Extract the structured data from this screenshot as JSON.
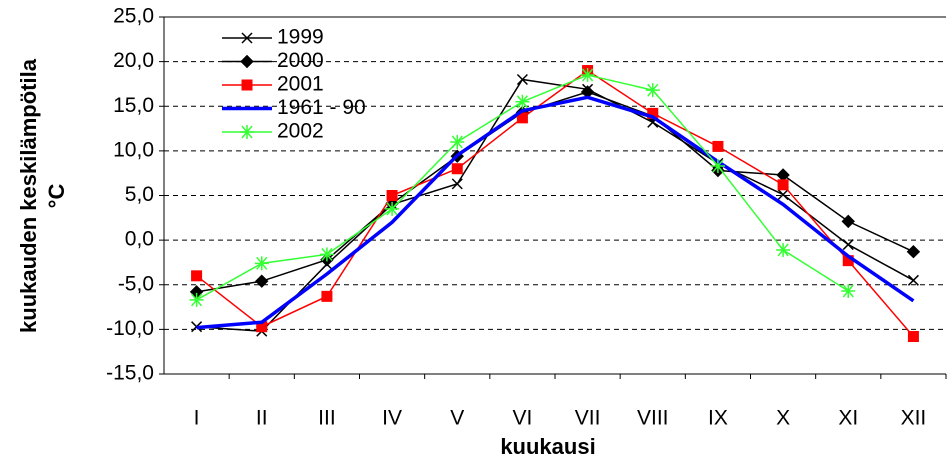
{
  "chart_data": {
    "type": "line",
    "xlabel": "kuukausi",
    "ylabel": [
      "kuukauden keskilämpötila",
      "°C"
    ],
    "categories": [
      "I",
      "II",
      "III",
      "IV",
      "V",
      "VI",
      "VII",
      "VIII",
      "IX",
      "X",
      "XI",
      "XII"
    ],
    "series": [
      {
        "name": "1999",
        "color": "#000000",
        "marker": "x",
        "width": 1.5,
        "values": [
          -9.7,
          -10.2,
          -2.7,
          4.0,
          6.3,
          18.0,
          16.9,
          13.2,
          8.6,
          5.1,
          -0.5,
          -4.5
        ]
      },
      {
        "name": "2000",
        "color": "#000000",
        "marker": "diamond",
        "width": 1.5,
        "values": [
          -5.8,
          -4.6,
          -2.2,
          4.1,
          9.4,
          14.3,
          16.6,
          13.9,
          7.8,
          7.3,
          2.1,
          -1.3
        ]
      },
      {
        "name": "2001",
        "color": "#ff0000",
        "marker": "square",
        "width": 1.5,
        "values": [
          -4.0,
          -9.7,
          -6.3,
          5.0,
          8.0,
          13.7,
          19.0,
          14.2,
          10.5,
          6.2,
          -2.3,
          -10.8
        ]
      },
      {
        "name": "1961 - 90",
        "color": "#0000ff",
        "marker": "none",
        "width": 3.5,
        "values": [
          -9.8,
          -9.2,
          -3.8,
          2.0,
          9.5,
          14.5,
          16.0,
          13.8,
          8.8,
          4.0,
          -1.8,
          -6.8
        ]
      },
      {
        "name": "2002",
        "color": "#33ff33",
        "marker": "star",
        "width": 1.5,
        "values": [
          -6.7,
          -2.6,
          -1.6,
          3.5,
          11.0,
          15.5,
          18.5,
          16.8,
          8.3,
          -1.1,
          -5.7,
          null
        ]
      }
    ],
    "ylim": [
      -15,
      25
    ],
    "yticks": [
      {
        "value": -15,
        "label": "-15,0"
      },
      {
        "value": -10,
        "label": "-10,0"
      },
      {
        "value": -5,
        "label": "-5,0"
      },
      {
        "value": 0,
        "label": "0,0"
      },
      {
        "value": 5,
        "label": "5,0"
      },
      {
        "value": 10,
        "label": "10,0"
      },
      {
        "value": 15,
        "label": "15,0"
      },
      {
        "value": 20,
        "label": "20,0"
      },
      {
        "value": 25,
        "label": "25,0"
      }
    ],
    "grid": true,
    "legend": "upper left"
  }
}
